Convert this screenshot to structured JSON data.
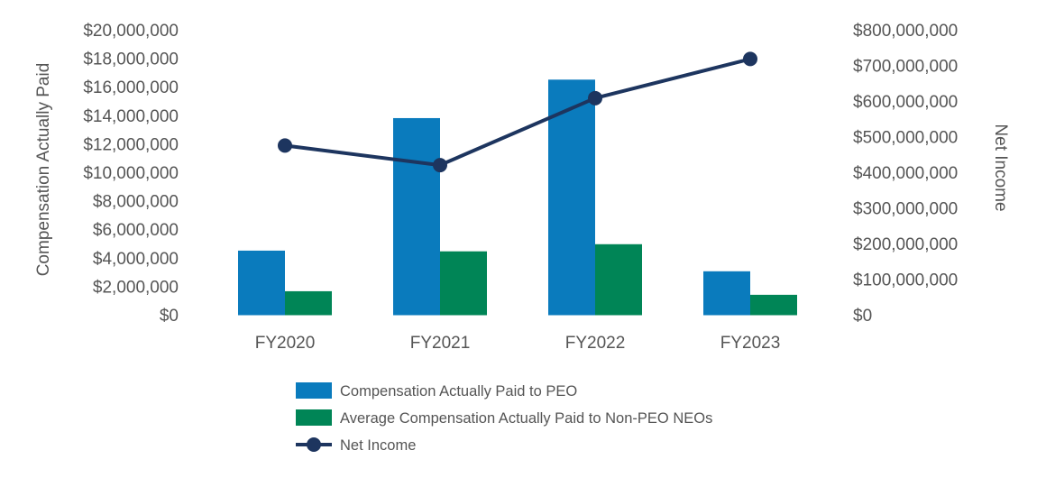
{
  "chart_data": {
    "type": "bar",
    "categories": [
      "FY2020",
      "FY2021",
      "FY2022",
      "FY2023"
    ],
    "series": [
      {
        "name": "Compensation Actually Paid to PEO",
        "axis": "left",
        "kind": "bar",
        "color": "#0a7bbd",
        "values": [
          4500000,
          13800000,
          16500000,
          3050000
        ]
      },
      {
        "name": "Average Compensation Actually Paid to Non-PEO NEOs",
        "axis": "left",
        "kind": "bar",
        "color": "#008556",
        "values": [
          1650000,
          4450000,
          4950000,
          1400000
        ]
      },
      {
        "name": "Net Income",
        "axis": "right",
        "kind": "line",
        "color": "#1d355f",
        "values": [
          475000000,
          420000000,
          608000000,
          718000000
        ]
      }
    ],
    "left_axis": {
      "label": "Compensation Actually Paid",
      "min": 0,
      "max": 20000000,
      "ticks": [
        "$0",
        "$2,000,000",
        "$4,000,000",
        "$6,000,000",
        "$8,000,000",
        "$10,000,000",
        "$12,000,000",
        "$14,000,000",
        "$16,000,000",
        "$18,000,000",
        "$20,000,000"
      ]
    },
    "right_axis": {
      "label": "Net Income",
      "min": 0,
      "max": 800000000,
      "ticks": [
        "$0",
        "$100,000,000",
        "$200,000,000",
        "$300,000,000",
        "$400,000,000",
        "$500,000,000",
        "$600,000,000",
        "$700,000,000",
        "$800,000,000"
      ]
    },
    "legend": [
      {
        "label": "Compensation Actually Paid to PEO",
        "kind": "bar",
        "color": "#0a7bbd"
      },
      {
        "label": "Average Compensation Actually Paid to Non-PEO NEOs",
        "kind": "bar",
        "color": "#008556"
      },
      {
        "label": "Net Income",
        "kind": "line",
        "color": "#1d355f"
      }
    ],
    "legend_position": "bottom-center",
    "grid": false
  }
}
